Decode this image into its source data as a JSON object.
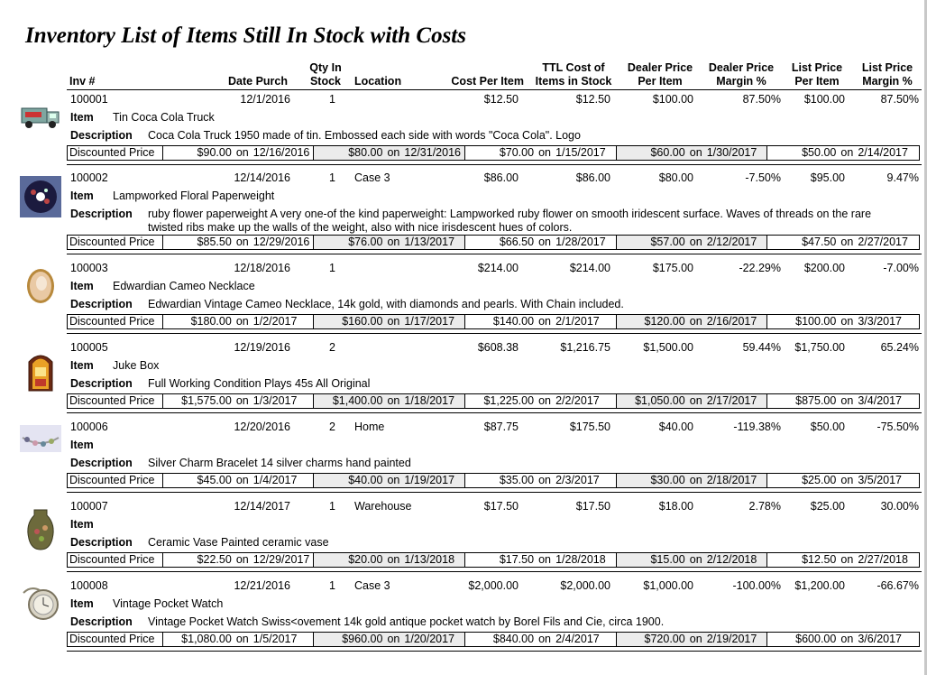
{
  "title": "Inventory List of Items Still In Stock with Costs",
  "headers": {
    "inv": "Inv #",
    "date": "Date Purch",
    "qty_1": "Qty In",
    "qty_2": "Stock",
    "location": "Location",
    "cost": "Cost Per Item",
    "ttl_1": "TTL Cost of",
    "ttl_2": "Items in Stock",
    "dealer_1": "Dealer Price",
    "dealer_2": "Per Item",
    "dmargin_1": "Dealer Price",
    "dmargin_2": "Margin %",
    "list_1": "List Price",
    "list_2": "Per Item",
    "lmargin_1": "List Price",
    "lmargin_2": "Margin %"
  },
  "labels": {
    "item": "Item",
    "description": "Description",
    "discounted": "Discounted Price",
    "on": "on"
  },
  "items": [
    {
      "inv": "100001",
      "date": "12/1/2016",
      "qty": "1",
      "location": "",
      "cost": "$12.50",
      "ttl": "$12.50",
      "dealer": "$100.00",
      "dmargin": "87.50%",
      "list": "$100.00",
      "lmargin": "87.50%",
      "item": "Tin Coca Cola Truck",
      "description": "Coca Cola Truck 1950 made of tin.  Embossed each side with words \"Coca Cola\". Logo",
      "thumb_icon": "toy-truck-icon",
      "discounts": [
        {
          "price": "$90.00",
          "date": "12/16/2016"
        },
        {
          "price": "$80.00",
          "date": "12/31/2016"
        },
        {
          "price": "$70.00",
          "date": "1/15/2017"
        },
        {
          "price": "$60.00",
          "date": "1/30/2017"
        },
        {
          "price": "$50.00",
          "date": "2/14/2017"
        }
      ]
    },
    {
      "inv": "100002",
      "date": "12/14/2016",
      "qty": "1",
      "location": "Case 3",
      "cost": "$86.00",
      "ttl": "$86.00",
      "dealer": "$80.00",
      "dmargin": "-7.50%",
      "list": "$95.00",
      "lmargin": "9.47%",
      "item": "Lampworked Floral Paperweight",
      "description": "ruby flower paperweight A very one-of the kind paperweight: Lampworked ruby flower on smooth iridescent surface.  Waves of threads on the rare twisted ribs make up the walls of the weight, also with nice irisdescent hues of colors.",
      "thumb_icon": "paperweight-icon",
      "discounts": [
        {
          "price": "$85.50",
          "date": "12/29/2016"
        },
        {
          "price": "$76.00",
          "date": "1/13/2017"
        },
        {
          "price": "$66.50",
          "date": "1/28/2017"
        },
        {
          "price": "$57.00",
          "date": "2/12/2017"
        },
        {
          "price": "$47.50",
          "date": "2/27/2017"
        }
      ]
    },
    {
      "inv": "100003",
      "date": "12/18/2016",
      "qty": "1",
      "location": "",
      "cost": "$214.00",
      "ttl": "$214.00",
      "dealer": "$175.00",
      "dmargin": "-22.29%",
      "list": "$200.00",
      "lmargin": "-7.00%",
      "item": "Edwardian Cameo Necklace",
      "description": "Edwardian Vintage Cameo Necklace, 14k gold, with diamonds and pearls. With Chain included.",
      "thumb_icon": "cameo-icon",
      "discounts": [
        {
          "price": "$180.00",
          "date": "1/2/2017"
        },
        {
          "price": "$160.00",
          "date": "1/17/2017"
        },
        {
          "price": "$140.00",
          "date": "2/1/2017"
        },
        {
          "price": "$120.00",
          "date": "2/16/2017"
        },
        {
          "price": "$100.00",
          "date": "3/3/2017"
        }
      ]
    },
    {
      "inv": "100005",
      "date": "12/19/2016",
      "qty": "2",
      "location": "",
      "cost": "$608.38",
      "ttl": "$1,216.75",
      "dealer": "$1,500.00",
      "dmargin": "59.44%",
      "list": "$1,750.00",
      "lmargin": "65.24%",
      "item": "Juke Box",
      "description": "Full Working Condition Plays 45s All Original",
      "thumb_icon": "jukebox-icon",
      "discounts": [
        {
          "price": "$1,575.00",
          "date": "1/3/2017"
        },
        {
          "price": "$1,400.00",
          "date": "1/18/2017"
        },
        {
          "price": "$1,225.00",
          "date": "2/2/2017"
        },
        {
          "price": "$1,050.00",
          "date": "2/17/2017"
        },
        {
          "price": "$875.00",
          "date": "3/4/2017"
        }
      ]
    },
    {
      "inv": "100006",
      "date": "12/20/2016",
      "qty": "2",
      "location": "Home",
      "cost": "$87.75",
      "ttl": "$175.50",
      "dealer": "$40.00",
      "dmargin": "-119.38%",
      "list": "$50.00",
      "lmargin": "-75.50%",
      "item": "",
      "description": "Silver Charm Bracelet 14 silver charms hand painted",
      "thumb_icon": "bracelet-icon",
      "discounts": [
        {
          "price": "$45.00",
          "date": "1/4/2017"
        },
        {
          "price": "$40.00",
          "date": "1/19/2017"
        },
        {
          "price": "$35.00",
          "date": "2/3/2017"
        },
        {
          "price": "$30.00",
          "date": "2/18/2017"
        },
        {
          "price": "$25.00",
          "date": "3/5/2017"
        }
      ]
    },
    {
      "inv": "100007",
      "date": "12/14/2017",
      "qty": "1",
      "location": "Warehouse",
      "cost": "$17.50",
      "ttl": "$17.50",
      "dealer": "$18.00",
      "dmargin": "2.78%",
      "list": "$25.00",
      "lmargin": "30.00%",
      "item": "",
      "description": "Ceramic Vase Painted ceramic vase",
      "thumb_icon": "vase-icon",
      "discounts": [
        {
          "price": "$22.50",
          "date": "12/29/2017"
        },
        {
          "price": "$20.00",
          "date": "1/13/2018"
        },
        {
          "price": "$17.50",
          "date": "1/28/2018"
        },
        {
          "price": "$15.00",
          "date": "2/12/2018"
        },
        {
          "price": "$12.50",
          "date": "2/27/2018"
        }
      ]
    },
    {
      "inv": "100008",
      "date": "12/21/2016",
      "qty": "1",
      "location": "Case 3",
      "cost": "$2,000.00",
      "ttl": "$2,000.00",
      "dealer": "$1,000.00",
      "dmargin": "-100.00%",
      "list": "$1,200.00",
      "lmargin": "-66.67%",
      "item": "Vintage Pocket Watch",
      "description": "Vintage Pocket Watch Swiss<ovement 14k gold antique pocket watch by Borel Fils and Cie, circa 1900.",
      "thumb_icon": "pocket-watch-icon",
      "discounts": [
        {
          "price": "$1,080.00",
          "date": "1/5/2017"
        },
        {
          "price": "$960.00",
          "date": "1/20/2017"
        },
        {
          "price": "$840.00",
          "date": "2/4/2017"
        },
        {
          "price": "$720.00",
          "date": "2/19/2017"
        },
        {
          "price": "$600.00",
          "date": "3/6/2017"
        }
      ]
    }
  ]
}
